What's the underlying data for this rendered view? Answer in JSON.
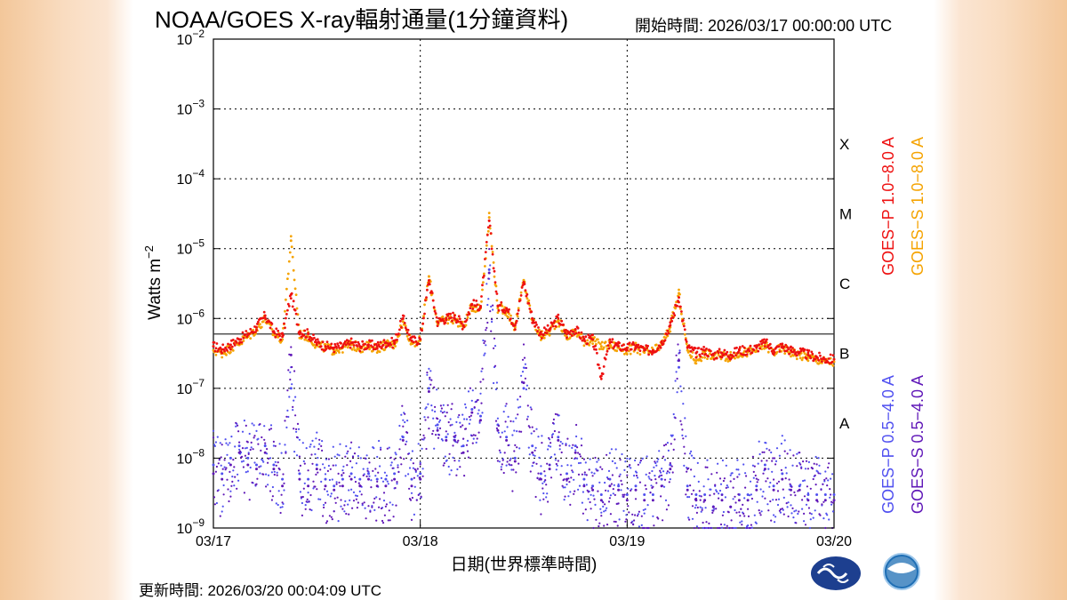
{
  "header": {
    "title": "NOAA/GOES X-ray輻射通量(1分鐘資料)",
    "start_time": "開始時間:  2026/03/17 00:00:00 UTC"
  },
  "footer": {
    "updated": "更新時間:  2026/03/20 00:04:09 UTC"
  },
  "logos": [
    {
      "name": "cwa-logo",
      "color": "#1d3f8f"
    },
    {
      "name": "noaa-logo",
      "color": "#1f6fb5"
    }
  ],
  "chart_data": {
    "type": "scatter",
    "title": "NOAA/GOES X-ray輻射通量(1分鐘資料)",
    "xlabel": "日期(世界標準時間)",
    "ylabel": "Watts m",
    "ylabel_superscript": "−2",
    "y_scale": "log",
    "ylim": [
      1e-09,
      0.01
    ],
    "xlim": [
      "2026-03-17 00:00",
      "2026-03-20 00:00"
    ],
    "x_ticks": [
      "03/17",
      "03/18",
      "03/19",
      "03/20"
    ],
    "y_ticks": [
      {
        "value": 0.01,
        "base": "10",
        "exp": "−2"
      },
      {
        "value": 0.001,
        "base": "10",
        "exp": "−3"
      },
      {
        "value": 0.0001,
        "base": "10",
        "exp": "−4"
      },
      {
        "value": 1e-05,
        "base": "10",
        "exp": "−5"
      },
      {
        "value": 1e-06,
        "base": "10",
        "exp": "−6"
      },
      {
        "value": 1e-07,
        "base": "10",
        "exp": "−7"
      },
      {
        "value": 1e-08,
        "base": "10",
        "exp": "−8"
      },
      {
        "value": 1e-09,
        "base": "10",
        "exp": "−9"
      }
    ],
    "grid": true,
    "flare_classes": [
      {
        "label": "X",
        "min": 0.0001
      },
      {
        "label": "M",
        "min": 1e-05
      },
      {
        "label": "C",
        "min": 1e-06
      },
      {
        "label": "B",
        "min": 1e-07
      },
      {
        "label": "A",
        "min": 1e-08
      }
    ],
    "threshold_line": 6e-07,
    "legend_placement": "right",
    "series": [
      {
        "name": "GOES−P 1.0−8.0 A",
        "color": "#ee1111",
        "x_hours": [
          0,
          1,
          2,
          3,
          4,
          5,
          6,
          7,
          8,
          9,
          10,
          11,
          12,
          13,
          14,
          15,
          16,
          17,
          18,
          19,
          20,
          21,
          22,
          23,
          24,
          25,
          26,
          27,
          28,
          29,
          30,
          31,
          32,
          33,
          34,
          35,
          36,
          37,
          38,
          39,
          40,
          41,
          42,
          43,
          44,
          45,
          46,
          47,
          48,
          49,
          50,
          51,
          52,
          53,
          54,
          55,
          56,
          57,
          58,
          59,
          60,
          61,
          62,
          63,
          64,
          65,
          66,
          67,
          68,
          69,
          70,
          71,
          72
        ],
        "values": [
          4e-07,
          3.6e-07,
          4.2e-07,
          5e-07,
          6e-07,
          7.5e-07,
          1.1e-06,
          6.5e-07,
          5.5e-07,
          2.2e-06,
          6.5e-07,
          6e-07,
          4.5e-07,
          4e-07,
          3.8e-07,
          4e-07,
          4.5e-07,
          4e-07,
          4.2e-07,
          4e-07,
          4.5e-07,
          4.5e-07,
          1e-06,
          4.8e-07,
          5e-07,
          3.5e-06,
          9e-07,
          1e-06,
          1.1e-06,
          8e-07,
          1.6e-06,
          1.5e-06,
          2.5e-05,
          1.5e-06,
          1.4e-06,
          8e-07,
          3.3e-06,
          1e-06,
          6e-07,
          7e-07,
          1e-06,
          6e-07,
          7e-07,
          5e-07,
          5e-07,
          1.5e-07,
          4.5e-07,
          4e-07,
          3.8e-07,
          4e-07,
          3.5e-07,
          3.5e-07,
          4.5e-07,
          8e-07,
          2e-06,
          3.8e-07,
          3.2e-07,
          3.5e-07,
          3e-07,
          3.2e-07,
          3e-07,
          3.5e-07,
          3.5e-07,
          3.8e-07,
          4.5e-07,
          3.5e-07,
          4e-07,
          3.5e-07,
          3.3e-07,
          3e-07,
          2.8e-07,
          2.6e-07,
          2.6e-07
        ]
      },
      {
        "name": "GOES−S 1.0−8.0 A",
        "color": "#f5a300",
        "x_hours": [
          0,
          1,
          2,
          3,
          4,
          5,
          6,
          7,
          8,
          9,
          10,
          11,
          12,
          13,
          14,
          15,
          16,
          17,
          18,
          19,
          20,
          21,
          22,
          23,
          24,
          25,
          26,
          27,
          28,
          29,
          30,
          31,
          32,
          33,
          34,
          35,
          36,
          37,
          38,
          39,
          40,
          41,
          42,
          43,
          44,
          45,
          46,
          47,
          48,
          49,
          50,
          51,
          52,
          53,
          54,
          55,
          56,
          57,
          58,
          59,
          60,
          61,
          62,
          63,
          64,
          65,
          66,
          67,
          68,
          69,
          70,
          71,
          72
        ],
        "values": [
          3.5e-07,
          3.2e-07,
          3.8e-07,
          4.5e-07,
          5.5e-07,
          7e-07,
          1e-06,
          6e-07,
          5e-07,
          1.3e-05,
          6e-07,
          5.5e-07,
          4.2e-07,
          3.8e-07,
          3.5e-07,
          3.8e-07,
          4.2e-07,
          3.8e-07,
          4e-07,
          3.8e-07,
          4.2e-07,
          4.2e-07,
          9e-07,
          4.5e-07,
          4.8e-07,
          4e-06,
          8.5e-07,
          9.5e-07,
          1e-06,
          7.5e-07,
          1.5e-06,
          1.4e-06,
          2.8e-05,
          1.4e-06,
          1.3e-06,
          7.5e-07,
          3.5e-06,
          9.5e-07,
          5.5e-07,
          6.5e-07,
          9.5e-07,
          5.5e-07,
          6.5e-07,
          4.8e-07,
          4.8e-07,
          4e-07,
          4.2e-07,
          3.8e-07,
          3.5e-07,
          3.8e-07,
          3.3e-07,
          3.3e-07,
          4.2e-07,
          7.5e-07,
          2.3e-06,
          3.5e-07,
          2.5e-07,
          3.2e-07,
          2.8e-07,
          3e-07,
          2.8e-07,
          3.2e-07,
          3.3e-07,
          3.5e-07,
          4.2e-07,
          3.3e-07,
          3.8e-07,
          3.3e-07,
          3e-07,
          2.8e-07,
          2.6e-07,
          2.4e-07,
          2.4e-07
        ]
      },
      {
        "name": "GOES−P 0.5−4.0 A",
        "color": "#5050f0",
        "x_hours": [
          0,
          1,
          2,
          3,
          4,
          5,
          6,
          7,
          8,
          9,
          10,
          11,
          12,
          13,
          14,
          15,
          16,
          17,
          18,
          19,
          20,
          21,
          22,
          23,
          24,
          25,
          26,
          27,
          28,
          29,
          30,
          31,
          32,
          33,
          34,
          35,
          36,
          37,
          38,
          39,
          40,
          41,
          42,
          43,
          44,
          45,
          46,
          47,
          48,
          49,
          50,
          51,
          52,
          53,
          54,
          55,
          56,
          57,
          58,
          59,
          60,
          61,
          62,
          63,
          64,
          65,
          66,
          67,
          68,
          69,
          70,
          71,
          72
        ],
        "values": [
          8e-09,
          6e-09,
          1e-08,
          1.5e-08,
          1e-08,
          8e-09,
          1.5e-08,
          8e-09,
          5e-09,
          1e-07,
          6e-09,
          5e-09,
          8e-09,
          5e-09,
          4e-09,
          5e-09,
          6e-09,
          5e-09,
          6e-09,
          5e-09,
          5e-09,
          6e-09,
          2e-08,
          5e-09,
          6e-09,
          1e-07,
          3e-08,
          2e-08,
          2e-08,
          1.5e-08,
          5e-08,
          4e-08,
          5e-06,
          3e-08,
          2e-08,
          1e-08,
          1e-07,
          1.5e-08,
          6e-09,
          8e-09,
          2e-08,
          6e-09,
          1.5e-08,
          5e-09,
          4e-09,
          3e-09,
          5e-09,
          4e-09,
          3e-09,
          4e-09,
          3e-09,
          3e-09,
          5e-09,
          8e-09,
          2e-07,
          4e-09,
          3e-09,
          3e-09,
          2e-09,
          3e-09,
          2e-09,
          3e-09,
          3e-09,
          4e-09,
          8e-09,
          4e-09,
          6e-09,
          4e-09,
          4e-09,
          3e-09,
          3e-09,
          3e-09,
          3e-09
        ]
      },
      {
        "name": "GOES−S 0.5−4.0 A",
        "color": "#6018b8",
        "x_hours": [
          0,
          1,
          2,
          3,
          4,
          5,
          6,
          7,
          8,
          9,
          10,
          11,
          12,
          13,
          14,
          15,
          16,
          17,
          18,
          19,
          20,
          21,
          22,
          23,
          24,
          25,
          26,
          27,
          28,
          29,
          30,
          31,
          32,
          33,
          34,
          35,
          36,
          37,
          38,
          39,
          40,
          41,
          42,
          43,
          44,
          45,
          46,
          47,
          48,
          49,
          50,
          51,
          52,
          53,
          54,
          55,
          56,
          57,
          58,
          59,
          60,
          61,
          62,
          63,
          64,
          65,
          66,
          67,
          68,
          69,
          70,
          71,
          72
        ],
        "values": [
          6e-09,
          5e-09,
          8e-09,
          1.2e-08,
          8e-09,
          7e-09,
          1.2e-08,
          7e-09,
          4e-09,
          3e-07,
          5e-09,
          4e-09,
          7e-09,
          4e-09,
          3.5e-09,
          4e-09,
          5e-09,
          4e-09,
          5e-09,
          4e-09,
          4e-09,
          5e-09,
          1.8e-08,
          4e-09,
          5e-09,
          9e-08,
          2.5e-08,
          1.8e-08,
          1.8e-08,
          1.2e-08,
          4.5e-08,
          3.5e-08,
          4.5e-06,
          2.5e-08,
          1.8e-08,
          9e-09,
          1.2e-07,
          1.2e-08,
          5e-09,
          7e-09,
          1.8e-08,
          5e-09,
          1.2e-08,
          4e-09,
          3.5e-09,
          2.5e-09,
          4e-09,
          3.5e-09,
          2.5e-09,
          3.5e-09,
          2.5e-09,
          2.5e-09,
          4e-09,
          7e-09,
          2.5e-07,
          3.5e-09,
          2.5e-09,
          2.5e-09,
          2e-09,
          2.5e-09,
          2e-09,
          2.5e-09,
          2.5e-09,
          3.5e-09,
          7e-09,
          3.5e-09,
          5e-09,
          3.5e-09,
          3.5e-09,
          2.5e-09,
          2.5e-09,
          2.5e-09,
          2.5e-09
        ]
      }
    ]
  }
}
